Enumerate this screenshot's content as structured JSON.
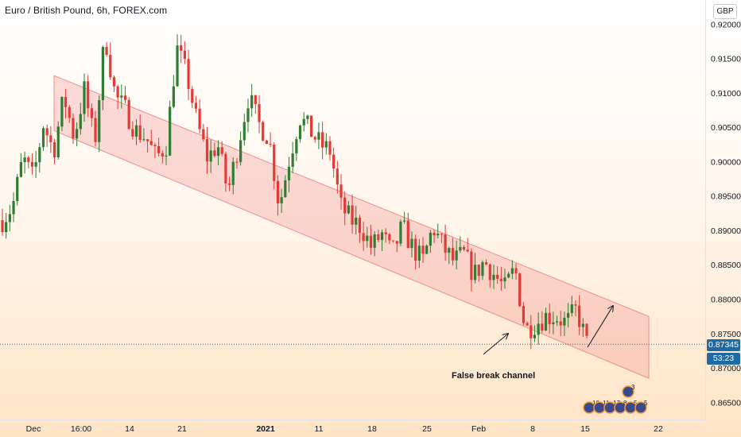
{
  "title": "Euro / British Pound, 6h, FOREX.com",
  "currency": "GBP",
  "colors": {
    "up": "#26a69a",
    "down": "#ef5350",
    "upCandle": "#2e7d32",
    "downCandle": "#e53935",
    "channel": "#f08c8c",
    "priceLine": "#1f6aa3"
  },
  "last_price": "0.87345",
  "countdown": "53:23",
  "annotation": "False break channel",
  "chart_data": {
    "type": "candlestick",
    "ylim": [
      0.8625,
      0.9235
    ],
    "y_ticks": [
      {
        "value": 0.865,
        "label": "0.86500"
      },
      {
        "value": 0.87,
        "label": "0.87000"
      },
      {
        "value": 0.875,
        "label": "0.87500"
      },
      {
        "value": 0.88,
        "label": "0.88000"
      },
      {
        "value": 0.885,
        "label": "0.88500"
      },
      {
        "value": 0.89,
        "label": "0.89000"
      },
      {
        "value": 0.895,
        "label": "0.89500"
      },
      {
        "value": 0.9,
        "label": "0.90000"
      },
      {
        "value": 0.905,
        "label": "0.90500"
      },
      {
        "value": 0.91,
        "label": "0.91000"
      },
      {
        "value": 0.915,
        "label": "0.91500"
      },
      {
        "value": 0.92,
        "label": "0.92000"
      }
    ],
    "x_ticks": [
      "Dec",
      "16:00",
      "14",
      "21",
      "2021",
      "11",
      "18",
      "25",
      "Feb",
      "8",
      "15",
      "22"
    ],
    "channel": {
      "upper_start": 0.9125,
      "upper_end": 0.8775,
      "lower_start": 0.9045,
      "lower_end": 0.8685
    },
    "series_path": [
      0.8915,
      0.8935,
      0.9005,
      0.8975,
      0.9055,
      0.9015,
      0.9095,
      0.9035,
      0.9105,
      0.9025,
      0.9185,
      0.9095,
      0.9075,
      0.9045,
      0.9035,
      0.9005,
      0.9025,
      0.9165,
      0.9125,
      0.9055,
      0.9005,
      0.9025,
      0.8955,
      0.9025,
      0.9095,
      0.9055,
      0.9035,
      0.8935,
      0.9005,
      0.9065,
      0.9045,
      0.9025,
      0.9015,
      0.8935,
      0.8915,
      0.8905,
      0.8875,
      0.8895,
      0.8865,
      0.8905,
      0.8875,
      0.8855,
      0.8905,
      0.8875,
      0.8855,
      0.8865,
      0.8835,
      0.8855,
      0.8835,
      0.8815,
      0.8845,
      0.8755,
      0.8765,
      0.8775,
      0.8775,
      0.8765,
      0.8785,
      0.8735
    ],
    "candles_count": 158
  },
  "events": [
    {
      "label": "10"
    },
    {
      "label": "11"
    },
    {
      "label": "17"
    },
    {
      "label": "8"
    },
    {
      "label": "5"
    },
    {
      "label": "5"
    },
    {
      "label": "3"
    }
  ]
}
